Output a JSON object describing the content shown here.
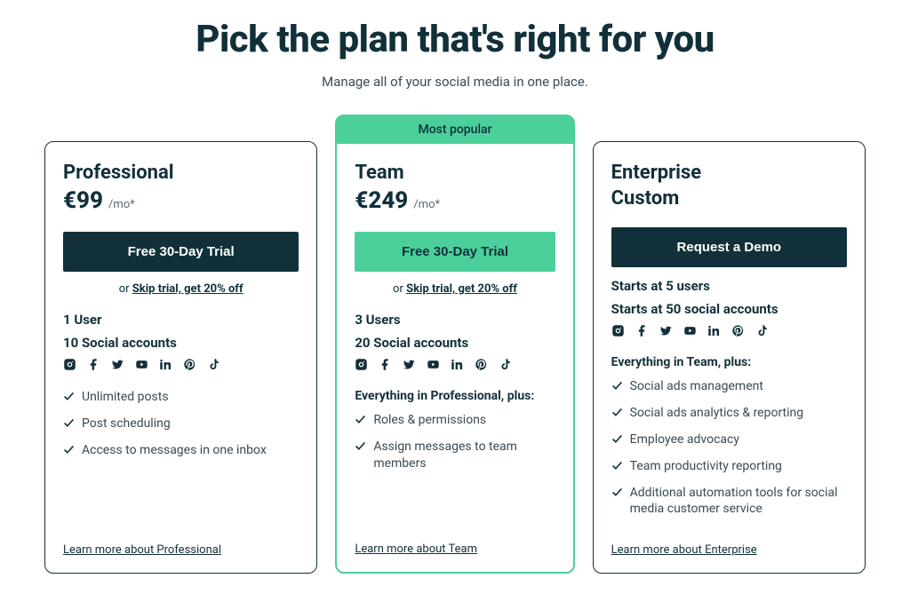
{
  "header": {
    "title": "Pick the plan that's right for you",
    "subtitle": "Manage all of your social media in one place."
  },
  "badge_label": "Most popular",
  "alt_cta_prefix": "or ",
  "alt_cta_link": "Skip trial, get 20% off",
  "period_suffix": "/mo*",
  "social_icons": [
    "instagram",
    "facebook",
    "twitter",
    "youtube",
    "linkedin",
    "pinterest",
    "tiktok"
  ],
  "plans": [
    {
      "name": "Professional",
      "price": "€99",
      "cta": "Free 30-Day Trial",
      "cta_style": "dark",
      "show_alt": true,
      "specs": [
        "1 User",
        "10 Social accounts"
      ],
      "plus_heading": "",
      "features": [
        "Unlimited posts",
        "Post scheduling",
        "Access to messages in one inbox"
      ],
      "learn_more": "Learn more about Professional"
    },
    {
      "name": "Team",
      "price": "€249",
      "cta": "Free 30-Day Trial",
      "cta_style": "green",
      "show_alt": true,
      "popular": true,
      "specs": [
        "3 Users",
        "20 Social accounts"
      ],
      "plus_heading": "Everything in Professional, plus:",
      "features": [
        "Roles & permissions",
        "Assign messages to team members"
      ],
      "learn_more": "Learn more about Team"
    },
    {
      "name": "Enterprise",
      "custom_price": "Custom",
      "cta": "Request a Demo",
      "cta_style": "dark",
      "show_alt": false,
      "specs": [
        "Starts at 5 users",
        "Starts at 50 social accounts"
      ],
      "plus_heading": "Everything in Team, plus:",
      "features": [
        "Social ads management",
        "Social ads analytics & reporting",
        "Employee advocacy",
        "Team productivity reporting",
        "Additional automation tools for social media customer service"
      ],
      "learn_more": "Learn more about Enterprise"
    }
  ],
  "colors": {
    "accent_green": "#4bcf9b",
    "dark_navy": "#12303a",
    "text_muted": "#3a4a53",
    "background": "#ffffff"
  }
}
